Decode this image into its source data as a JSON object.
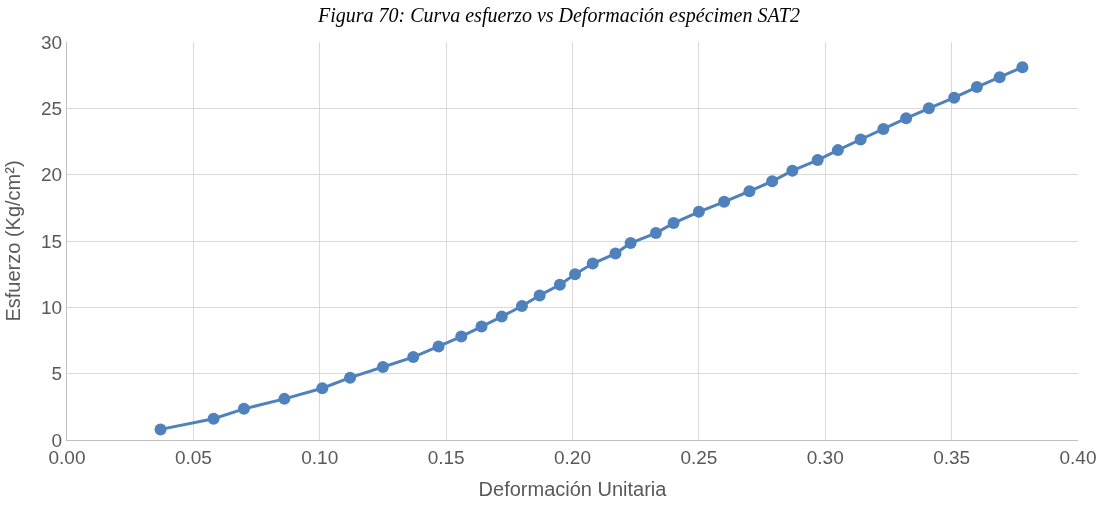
{
  "chart_data": {
    "type": "line",
    "title": "Figura 70: Curva esfuerzo vs Deformación espécimen SAT2",
    "xlabel": "Deformación Unitaria",
    "ylabel": "Esfuerzo (Kg/cm²)",
    "x": [
      0.037,
      0.058,
      0.07,
      0.086,
      0.101,
      0.112,
      0.125,
      0.137,
      0.147,
      0.156,
      0.164,
      0.172,
      0.18,
      0.187,
      0.195,
      0.201,
      0.208,
      0.217,
      0.223,
      0.233,
      0.24,
      0.25,
      0.26,
      0.27,
      0.279,
      0.287,
      0.297,
      0.305,
      0.314,
      0.323,
      0.332,
      0.341,
      0.351,
      0.36,
      0.369,
      0.378
    ],
    "series": [
      {
        "color": "#4f81bd",
        "values": [
          0.8,
          1.6,
          2.35,
          3.1,
          3.9,
          4.7,
          5.5,
          6.25,
          7.05,
          7.8,
          8.55,
          9.3,
          10.1,
          10.9,
          11.7,
          12.5,
          13.3,
          14.05,
          14.85,
          15.6,
          16.35,
          17.2,
          17.95,
          18.75,
          19.5,
          20.3,
          21.1,
          21.85,
          22.65,
          23.45,
          24.25,
          25.0,
          25.8,
          26.6,
          27.35,
          28.1
        ]
      }
    ],
    "xlim": [
      0,
      0.4
    ],
    "xticks": [
      {
        "value": 0,
        "label": "0.00"
      },
      {
        "value": 0.05,
        "label": "0.05"
      },
      {
        "value": 0.1,
        "label": "0.10"
      },
      {
        "value": 0.15,
        "label": "0.15"
      },
      {
        "value": 0.2,
        "label": "0.20"
      },
      {
        "value": 0.25,
        "label": "0.25"
      },
      {
        "value": 0.3,
        "label": "0.30"
      },
      {
        "value": 0.35,
        "label": "0.35"
      },
      {
        "value": 0.4,
        "label": "0.40"
      }
    ],
    "ylim": [
      0,
      30
    ],
    "yticks": [
      0,
      5,
      10,
      15,
      20,
      25,
      30
    ],
    "grid": true,
    "marker": "circle",
    "line_style": "solid"
  }
}
